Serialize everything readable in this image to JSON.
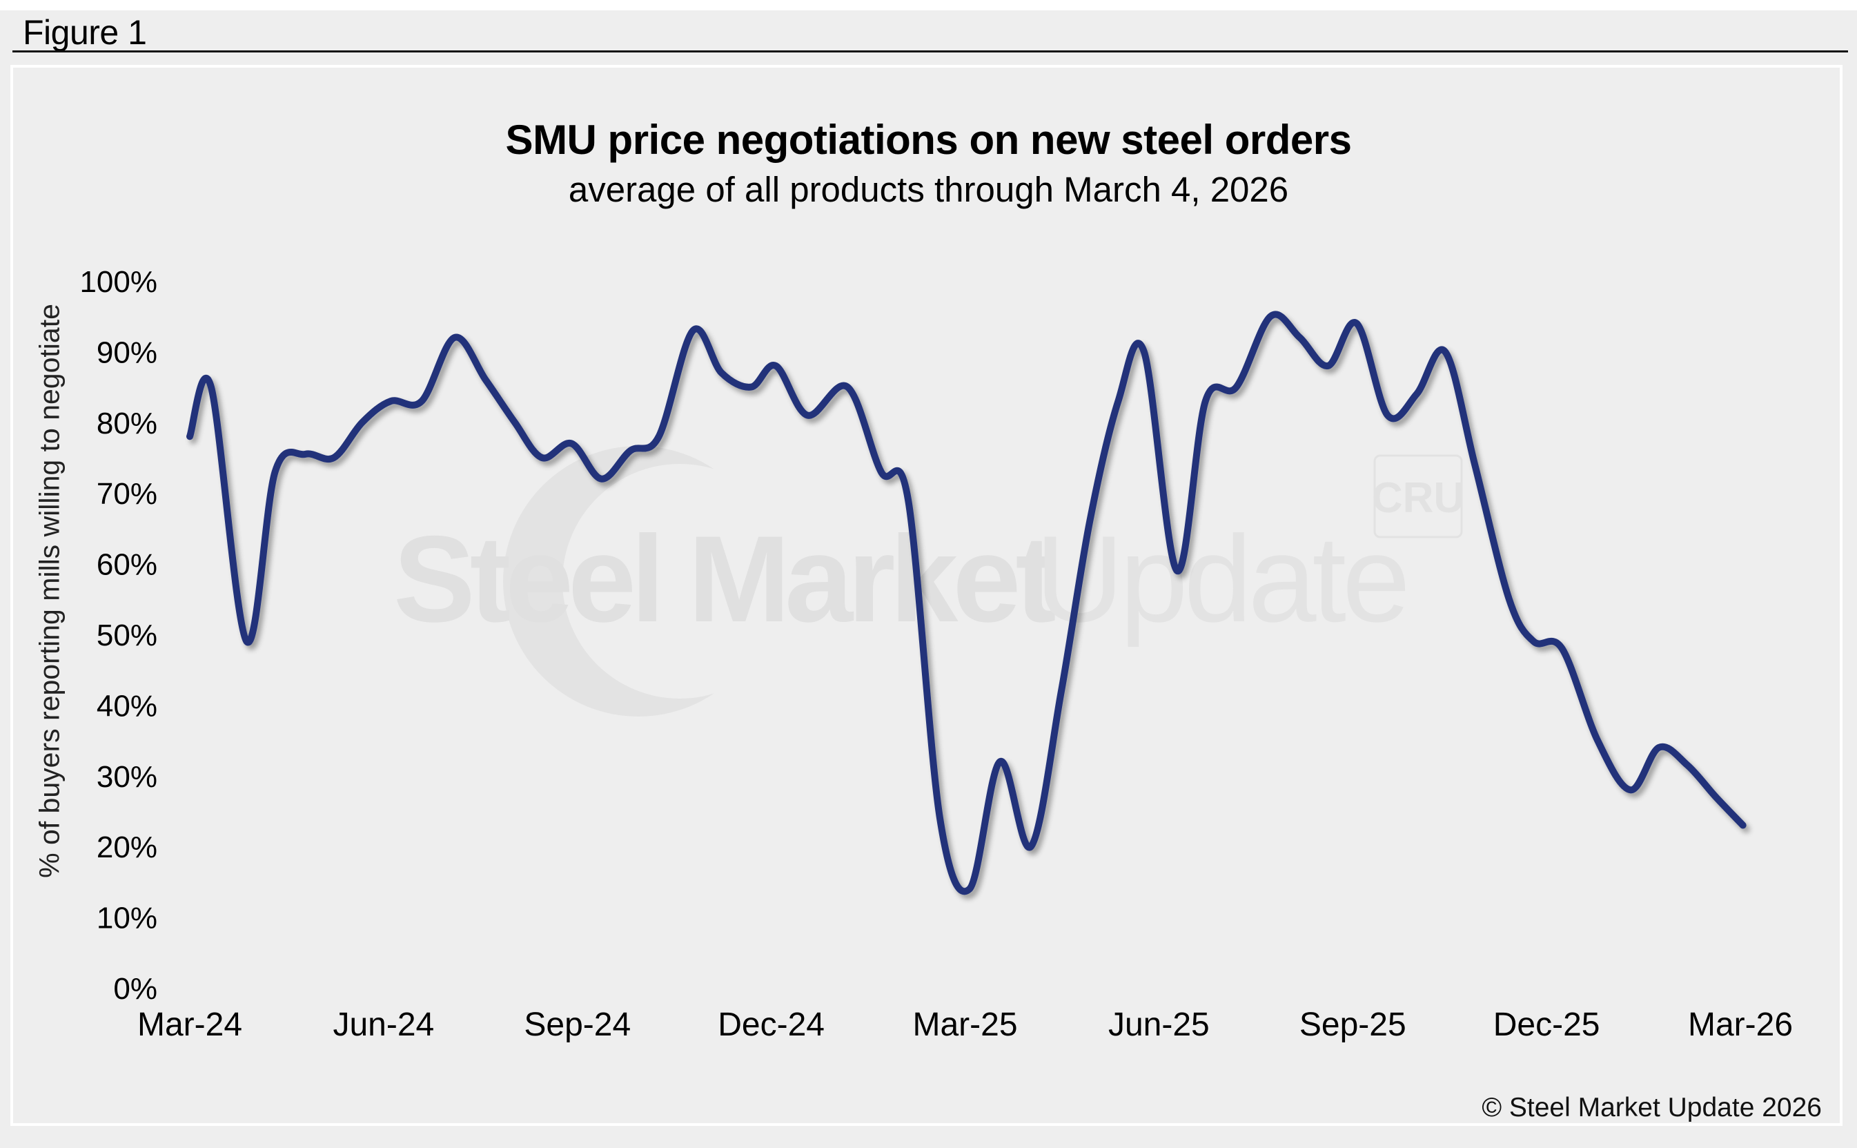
{
  "figure_label": "Figure 1",
  "copyright": "© Steel Market Update 2026",
  "watermark": {
    "text_bold": "Steel Market",
    "text_light": "Update",
    "badge": "CRU"
  },
  "colors": {
    "line": "#22337a",
    "background": "#eeeeee",
    "watermark": "#e0e0e0"
  },
  "chart_data": {
    "type": "line",
    "title": "SMU price negotiations on new steel orders",
    "subtitle": "average of all products through March 4, 2026",
    "xlabel": "",
    "ylabel": "% of buyers reporting mills willing to negotiate",
    "ylim": [
      0,
      100
    ],
    "yticks": [
      0,
      10,
      20,
      30,
      40,
      50,
      60,
      70,
      80,
      90,
      100
    ],
    "ytick_labels": [
      "0%",
      "10%",
      "20%",
      "30%",
      "40%",
      "50%",
      "60%",
      "70%",
      "80%",
      "90%",
      "100%"
    ],
    "xtick_labels": [
      "Mar-24",
      "Jun-24",
      "Sep-24",
      "Dec-24",
      "Mar-25",
      "Jun-25",
      "Sep-25",
      "Dec-25",
      "Mar-26"
    ],
    "xtick_months": [
      0,
      3,
      6,
      9,
      12,
      15,
      18,
      21,
      24
    ],
    "x_unit": "months since Mar-24",
    "grid": false,
    "legend": "none",
    "series": [
      {
        "name": "% of buyers reporting mills willing to negotiate",
        "x": [
          0.0,
          0.33,
          0.88,
          1.32,
          1.79,
          2.23,
          2.67,
          3.11,
          3.59,
          4.1,
          4.58,
          5.03,
          5.45,
          5.91,
          6.37,
          6.82,
          7.26,
          7.79,
          8.23,
          8.69,
          9.07,
          9.56,
          10.18,
          10.7,
          11.12,
          11.61,
          12.07,
          12.54,
          13.02,
          13.49,
          13.93,
          14.37,
          14.77,
          15.28,
          15.72,
          16.2,
          16.73,
          17.18,
          17.62,
          18.06,
          18.54,
          18.99,
          19.43,
          19.89,
          20.42,
          20.8,
          21.24,
          21.79,
          22.3,
          22.74,
          23.18,
          23.62,
          24.04
        ],
        "values": [
          78,
          85,
          49,
          73,
          75.5,
          75,
          80,
          83,
          83,
          92,
          86,
          80,
          75,
          77,
          72,
          76,
          78,
          93,
          87,
          85,
          88,
          81,
          85,
          73,
          69,
          24,
          14,
          32,
          20,
          42,
          66,
          83,
          90,
          59,
          83,
          85,
          95,
          92,
          88,
          94,
          81,
          84,
          90,
          74,
          55,
          49,
          48,
          35,
          28,
          34,
          31.5,
          27,
          23
        ]
      }
    ]
  }
}
